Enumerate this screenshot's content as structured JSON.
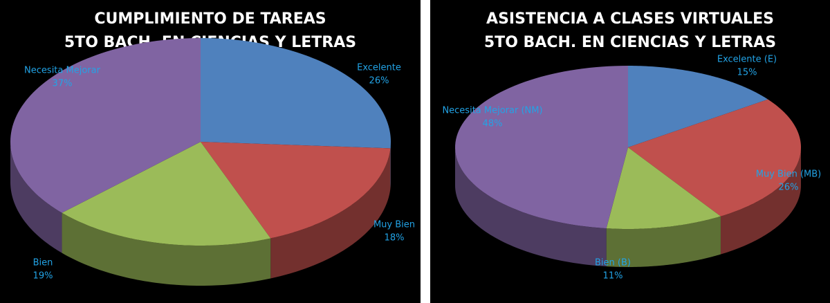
{
  "chart_data": [
    {
      "type": "pie3d",
      "title": "CUMPLIMIENTO DE TAREAS",
      "subtitle": "5TO BACH. EN CIENCIAS Y LETRAS",
      "categories": [
        "Excelente",
        "Muy Bien",
        "Bien",
        "Necesita Mejorar"
      ],
      "values": [
        26,
        18,
        19,
        37
      ],
      "value_labels": [
        "26%",
        "18%",
        "19%",
        "37%"
      ],
      "colors": [
        "#4f81bd",
        "#c0504d",
        "#9bbb59",
        "#8064a2"
      ]
    },
    {
      "type": "pie3d",
      "title": "ASISTENCIA A CLASES VIRTUALES",
      "subtitle": "5TO BACH. EN CIENCIAS Y LETRAS",
      "categories": [
        "Excelente (E)",
        "Muy Bien (MB)",
        "Bien (B)",
        "Necesita Mejorar (NM)"
      ],
      "values": [
        15,
        26,
        11,
        48
      ],
      "value_labels": [
        "15%",
        "26%",
        "11%",
        "48%"
      ],
      "colors": [
        "#4f81bd",
        "#c0504d",
        "#9bbb59",
        "#8064a2"
      ]
    }
  ]
}
